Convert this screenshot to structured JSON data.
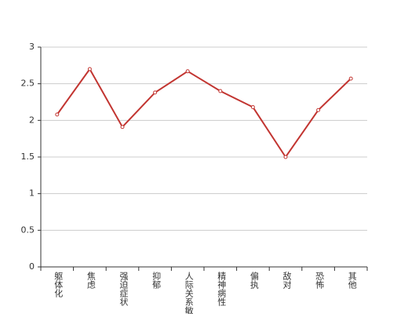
{
  "chart_data": {
    "type": "line",
    "categories": [
      "躯体化",
      "焦虑",
      "强迫症状",
      "抑郁",
      "人际关系敏感",
      "精神病性",
      "偏执",
      "敌对",
      "恐怖",
      "其他"
    ],
    "values": [
      2.08,
      2.7,
      1.91,
      2.38,
      2.67,
      2.4,
      2.18,
      1.5,
      2.14,
      2.57
    ],
    "color": "#c23531",
    "ylim": [
      0,
      3
    ],
    "yticks": [
      0,
      0.5,
      1,
      1.5,
      2,
      2.5,
      3
    ],
    "grid": true
  }
}
